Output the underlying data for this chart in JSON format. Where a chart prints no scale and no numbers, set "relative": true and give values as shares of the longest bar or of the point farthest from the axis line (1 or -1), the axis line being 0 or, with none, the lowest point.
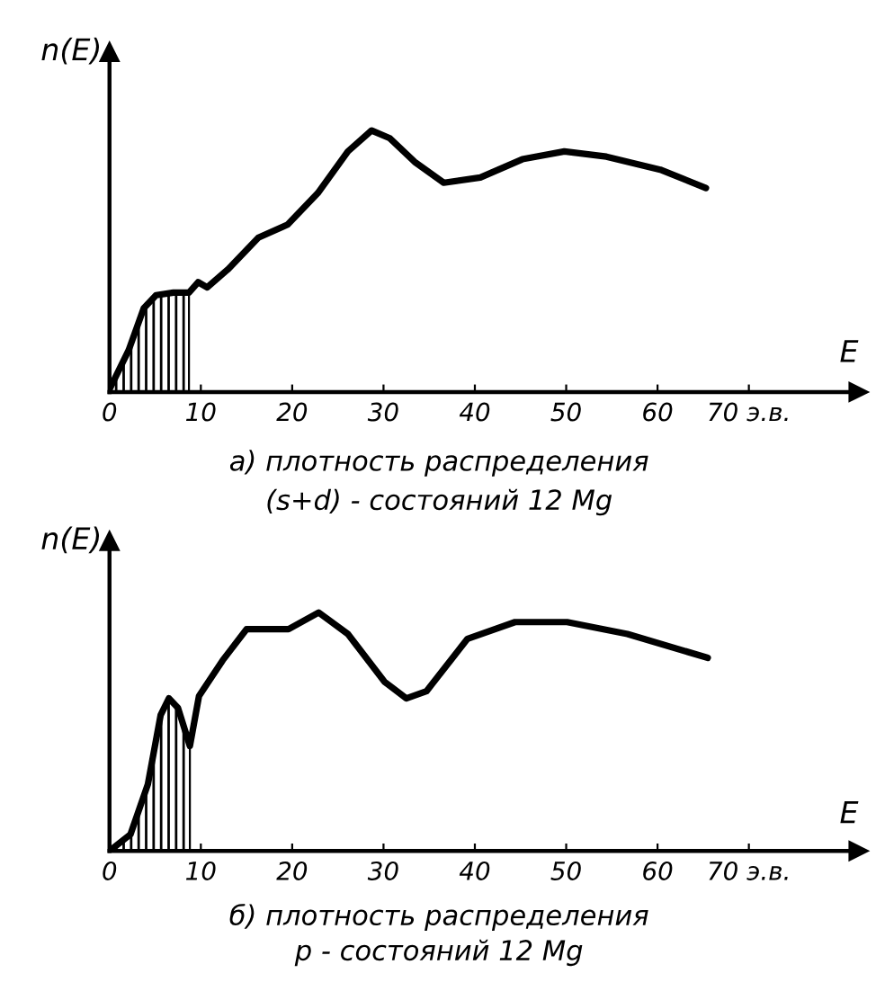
{
  "chart_data": [
    {
      "type": "line",
      "relative": true,
      "xlabel": "E",
      "ylabel": "n(E)",
      "xlim": [
        0,
        82
      ],
      "xticks": [
        0,
        10,
        20,
        30,
        40,
        50,
        60,
        {
          "value": 70,
          "label": "70 э.в."
        }
      ],
      "tick_labels": "x",
      "grid": false,
      "marker": "none",
      "line_style": "solid",
      "series": [
        {
          "color": "#000000",
          "x": [
            0,
            2.1,
            3.75,
            5.1,
            7.0,
            8.7,
            9.7,
            10.7,
            13.0,
            16.3,
            19.5,
            22.8,
            26.1,
            28.7,
            30.7,
            33.4,
            36.6,
            40.6,
            45.2,
            49.8,
            54.4,
            60.3,
            65.3
          ],
          "values": [
            0.01,
            0.16,
            0.32,
            0.37,
            0.38,
            0.38,
            0.42,
            0.4,
            0.47,
            0.59,
            0.64,
            0.76,
            0.92,
            1.0,
            0.97,
            0.88,
            0.8,
            0.82,
            0.89,
            0.92,
            0.9,
            0.85,
            0.78
          ]
        },
        {
          "type": "area",
          "color": "#000000",
          "x": [
            0,
            2.1,
            3.75,
            5.1,
            7.0,
            8.7
          ],
          "values": [
            0.01,
            0.16,
            0.32,
            0.37,
            0.38,
            0.38
          ]
        }
      ],
      "annotations": [
        "а) плотность распределения",
        "(s+d) - состояний 12 Mg"
      ]
    },
    {
      "type": "line",
      "relative": true,
      "xlabel": "E",
      "ylabel": "n(E)",
      "xlim": [
        0,
        82
      ],
      "xticks": [
        0,
        10,
        20,
        30,
        40,
        50,
        60,
        {
          "value": 70,
          "label": "70 э.в."
        }
      ],
      "tick_labels": "x",
      "grid": false,
      "marker": "none",
      "line_style": "solid",
      "series": [
        {
          "color": "#000000",
          "x": [
            0,
            2.3,
            4.2,
            5.6,
            6.5,
            7.5,
            8.8,
            9.8,
            12.4,
            15.0,
            19.6,
            22.9,
            26.1,
            30.1,
            32.5,
            34.7,
            39.2,
            44.4,
            50.1,
            56.7,
            65.5
          ],
          "values": [
            0.0,
            0.07,
            0.28,
            0.57,
            0.64,
            0.6,
            0.44,
            0.65,
            0.8,
            0.93,
            0.93,
            1.0,
            0.91,
            0.71,
            0.64,
            0.67,
            0.89,
            0.96,
            0.96,
            0.91,
            0.81
          ]
        },
        {
          "type": "area",
          "color": "#000000",
          "x": [
            0,
            2.3,
            4.2,
            5.6,
            6.5,
            7.5,
            8.8
          ],
          "values": [
            0.0,
            0.07,
            0.28,
            0.57,
            0.64,
            0.6,
            0.44
          ]
        }
      ],
      "annotations": [
        "б) плотность распределения",
        "p - состояний 12 Mg"
      ]
    }
  ]
}
